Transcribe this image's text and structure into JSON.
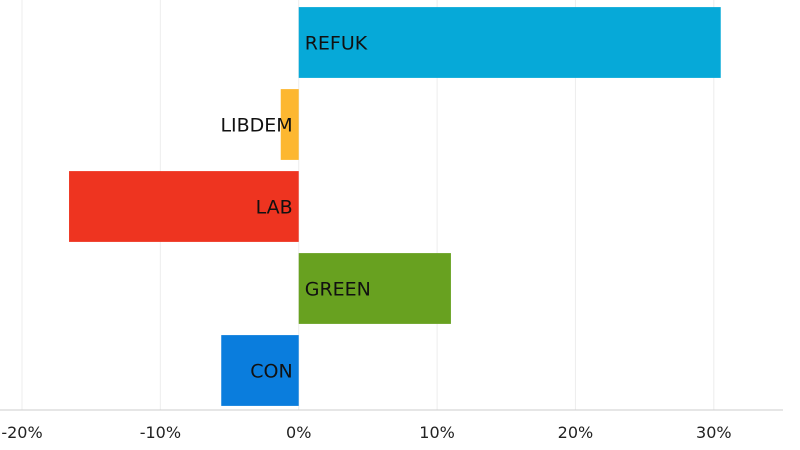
{
  "chart_data": {
    "type": "bar",
    "orientation": "horizontal",
    "categories": [
      "REFUK",
      "LIBDEM",
      "LAB",
      "GREEN",
      "CON"
    ],
    "values": [
      30.5,
      -1.3,
      -16.6,
      11.0,
      -5.6
    ],
    "colors": [
      "#06a9d8",
      "#fdb730",
      "#ee3420",
      "#68a120",
      "#0a7ddd"
    ],
    "xlim": [
      -20,
      35
    ],
    "xticks": [
      -20,
      -10,
      0,
      10,
      20,
      30
    ],
    "xtick_labels": [
      "-20%",
      "-10%",
      "0%",
      "10%",
      "20%",
      "30%"
    ],
    "grid": true,
    "title": "",
    "xlabel": "",
    "ylabel": ""
  }
}
